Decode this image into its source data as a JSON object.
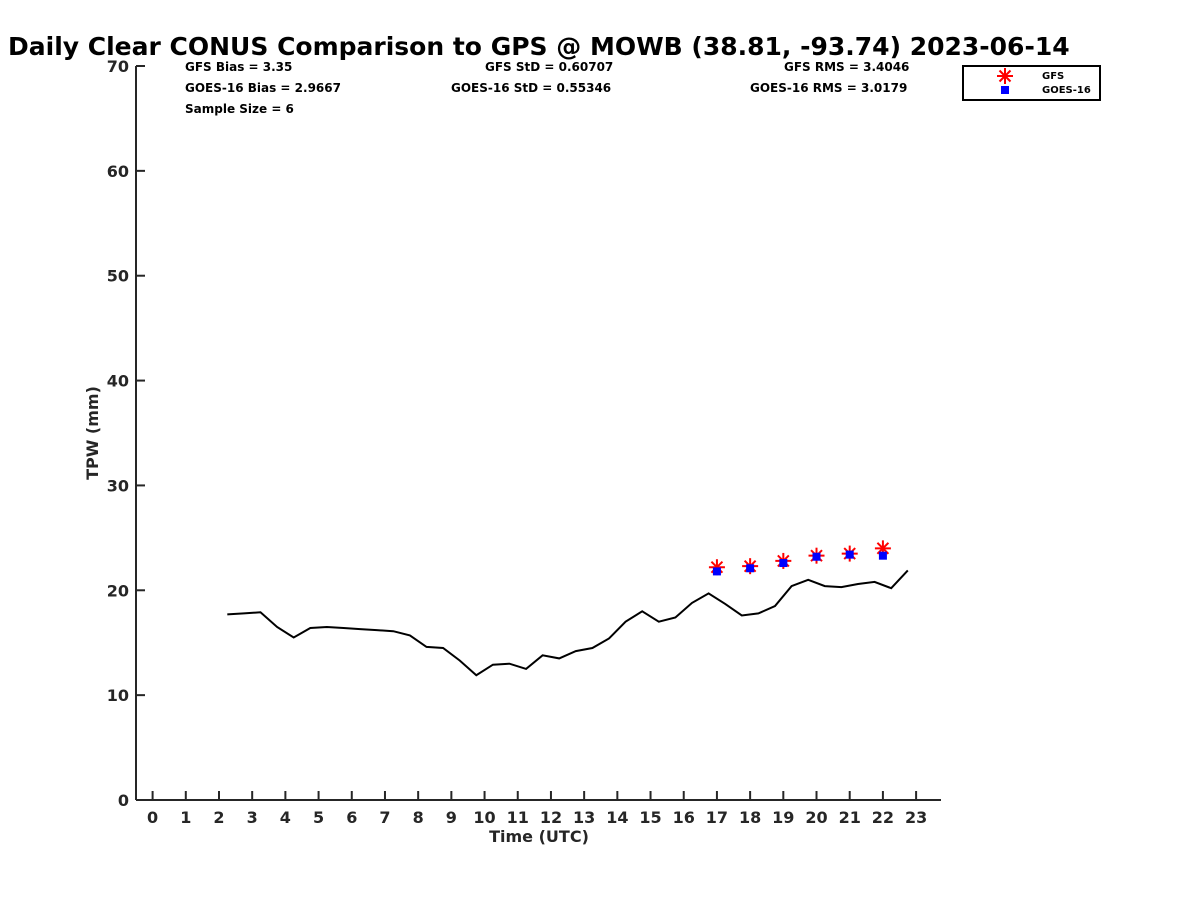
{
  "chart_data": {
    "type": "line",
    "title": "Daily Clear CONUS Comparison to GPS @ MOWB (38.81, -93.74) 2023-06-14",
    "xlabel": "Time (UTC)",
    "ylabel": "TPW (mm)",
    "xlim": [
      -0.5,
      23.75
    ],
    "ylim": [
      0,
      70
    ],
    "x_ticks": [
      0,
      1,
      2,
      3,
      4,
      5,
      6,
      7,
      8,
      9,
      10,
      11,
      12,
      13,
      14,
      15,
      16,
      17,
      18,
      19,
      20,
      21,
      22,
      23
    ],
    "y_ticks": [
      0,
      10,
      20,
      30,
      40,
      50,
      60,
      70
    ],
    "grid": false,
    "legend_position": "top-right",
    "stats": {
      "gfs_bias": "GFS Bias = 3.35",
      "goes_bias": "GOES-16 Bias = 2.9667",
      "sample_size": "Sample Size = 6",
      "gfs_std": "GFS StD = 0.60707",
      "goes_std": "GOES-16 StD = 0.55346",
      "gfs_rms": "GFS RMS = 3.4046",
      "goes_rms": "GOES-16 RMS = 3.0179"
    },
    "series": [
      {
        "kind": "line",
        "color": "#000000",
        "x": [
          2.25,
          2.75,
          3.25,
          3.75,
          4.25,
          4.75,
          5.25,
          5.75,
          6.25,
          6.75,
          7.25,
          7.75,
          8.25,
          8.75,
          9.25,
          9.75,
          10.25,
          10.75,
          11.25,
          11.75,
          12.25,
          12.75,
          13.25,
          13.75,
          14.25,
          14.75,
          15.25,
          15.75,
          16.25,
          16.75,
          17.25,
          17.75,
          18.25,
          18.75,
          19.25,
          19.75,
          20.25,
          20.75,
          21.25,
          21.75,
          22.25,
          22.75
        ],
        "y": [
          17.7,
          17.8,
          17.9,
          16.5,
          15.5,
          16.4,
          16.5,
          16.4,
          16.3,
          16.2,
          16.1,
          15.7,
          14.6,
          14.5,
          13.3,
          11.9,
          12.9,
          13.0,
          12.5,
          13.8,
          13.5,
          14.2,
          14.5,
          15.4,
          17.0,
          18.0,
          17.0,
          17.4,
          18.8,
          19.7,
          18.7,
          17.6,
          17.8,
          18.5,
          20.4,
          21.0,
          20.4,
          20.3,
          20.6,
          20.8,
          20.2,
          21.9
        ]
      },
      {
        "name": "GFS",
        "kind": "marker",
        "marker": "asterisk",
        "color": "#ff0000",
        "x": [
          17,
          18,
          19,
          20,
          21,
          22
        ],
        "y": [
          22.2,
          22.3,
          22.8,
          23.3,
          23.5,
          24.0
        ]
      },
      {
        "name": "GOES-16",
        "kind": "marker",
        "marker": "square",
        "color": "#0000ff",
        "x": [
          17,
          18,
          19,
          20,
          21,
          22
        ],
        "y": [
          21.8,
          22.1,
          22.6,
          23.2,
          23.4,
          23.3
        ]
      }
    ]
  }
}
